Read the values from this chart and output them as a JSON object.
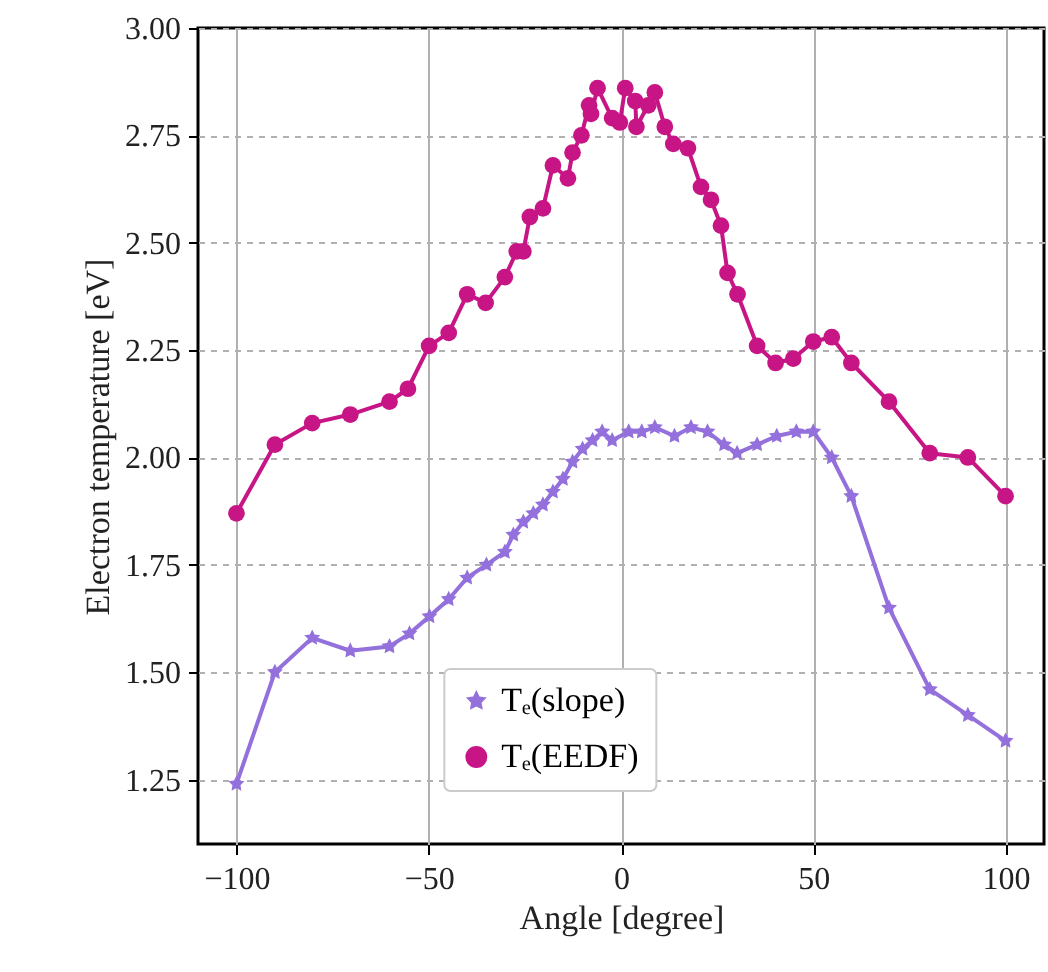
{
  "chart_data": {
    "type": "line",
    "xlabel": "Angle [degree]",
    "ylabel": "Electron temperature [eV]",
    "xlim": [
      -110,
      110
    ],
    "ylim": [
      1.1,
      3.0
    ],
    "xticks": [
      -100,
      -50,
      0,
      50,
      100
    ],
    "yticks": [
      1.25,
      {
        "value": 1.5,
        "label": "1.50"
      },
      1.75,
      {
        "value": 2.0,
        "label": "2.00"
      },
      2.25,
      {
        "value": 2.5,
        "label": "2.50"
      },
      2.75,
      {
        "value": 3.0,
        "label": "3.00"
      }
    ],
    "grid": true,
    "legend": "bottom",
    "line_style": "solid",
    "series": [
      {
        "name": "Tₑ(slope)",
        "color": "#9370db",
        "marker": "star",
        "x": [
          -100,
          -90,
          -80.3,
          -70.4,
          -60.2,
          -55,
          -49.8,
          -44.8,
          -40,
          -35,
          -30.2,
          -28,
          -25.4,
          -22.8,
          -20.3,
          -17.7,
          -15.1,
          -12.6,
          -10,
          -7.4,
          -4.9,
          -2.3,
          2,
          5.4,
          8.8,
          13.9,
          18.2,
          22.5,
          26.8,
          30.2,
          35.4,
          40.5,
          45.6,
          50,
          54.8,
          59.9,
          69.7,
          80.3,
          90.2,
          100
        ],
        "values": [
          1.24,
          1.5,
          1.58,
          1.55,
          1.56,
          1.59,
          1.63,
          1.67,
          1.72,
          1.75,
          1.78,
          1.82,
          1.85,
          1.87,
          1.89,
          1.92,
          1.95,
          1.99,
          2.02,
          2.04,
          2.06,
          2.04,
          2.06,
          2.06,
          2.07,
          2.05,
          2.07,
          2.06,
          2.03,
          2.01,
          2.03,
          2.05,
          2.06,
          2.06,
          2.0,
          1.91,
          1.65,
          1.46,
          1.4,
          1.34
        ]
      },
      {
        "name": "Tₑ(EEDF)",
        "color": "#c71585",
        "marker": "circle",
        "x": [
          -100,
          -90,
          -80.3,
          -70.4,
          -60.2,
          -55.4,
          -49.9,
          -44.8,
          -40,
          -35.2,
          -30.2,
          -27.1,
          -25.4,
          -23.7,
          -20.3,
          -17.7,
          -13.8,
          -12.6,
          -10.3,
          -8.3,
          -7.8,
          -6.1,
          -2.3,
          -0.3,
          1.1,
          3.7,
          4,
          7.1,
          8.8,
          11.4,
          13.6,
          17.4,
          20.8,
          23.4,
          26,
          27.7,
          30.3,
          35.4,
          40.2,
          44.8,
          50,
          54.8,
          59.9,
          69.7,
          80.3,
          90.2,
          100
        ],
        "values": [
          1.87,
          2.03,
          2.08,
          2.1,
          2.13,
          2.16,
          2.26,
          2.29,
          2.38,
          2.36,
          2.42,
          2.48,
          2.48,
          2.56,
          2.58,
          2.68,
          2.65,
          2.71,
          2.75,
          2.82,
          2.8,
          2.86,
          2.79,
          2.78,
          2.86,
          2.83,
          2.77,
          2.82,
          2.85,
          2.77,
          2.73,
          2.72,
          2.63,
          2.6,
          2.54,
          2.43,
          2.38,
          2.26,
          2.22,
          2.23,
          2.27,
          2.28,
          2.22,
          2.13,
          2.01,
          2.0,
          1.91
        ]
      }
    ]
  }
}
